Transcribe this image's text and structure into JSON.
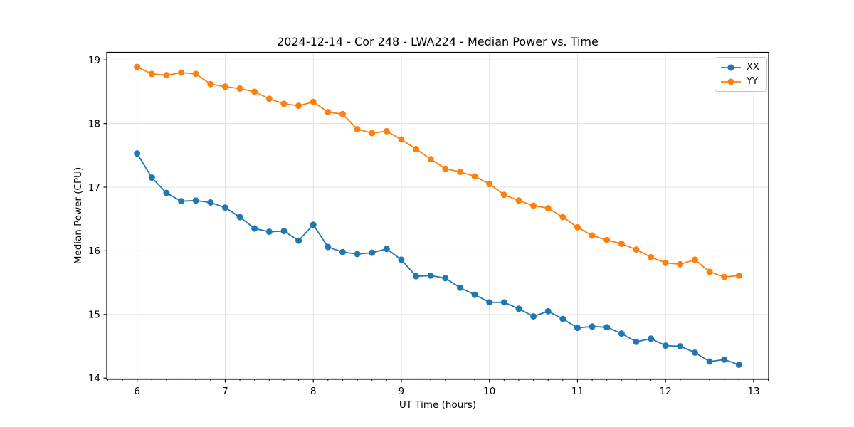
{
  "figure": {
    "background": "#ffffff"
  },
  "chart_data": {
    "type": "line",
    "title": "2024-12-14 - Cor 248 - LWA224 - Median Power vs. Time",
    "xlabel": "UT Time (hours)",
    "ylabel": "Median Power (CPU)",
    "xlim": [
      5.655,
      13.17
    ],
    "ylim": [
      13.98,
      19.12
    ],
    "xticks": [
      6,
      7,
      8,
      9,
      10,
      11,
      12,
      13
    ],
    "yticks": [
      14,
      15,
      16,
      17,
      18,
      19
    ],
    "minor_xtick_interval_hours": 0.1667,
    "grid": true,
    "grid_color": "#e0e0e0",
    "spine_color": "#000000",
    "legend_position": "upper right",
    "marker": "circle",
    "x": [
      6.0,
      6.1667,
      6.3333,
      6.5,
      6.6667,
      6.8333,
      7.0,
      7.1667,
      7.3333,
      7.5,
      7.6667,
      7.8333,
      8.0,
      8.1667,
      8.3333,
      8.5,
      8.6667,
      8.8333,
      9.0,
      9.1667,
      9.3333,
      9.5,
      9.6667,
      9.8333,
      10.0,
      10.1667,
      10.3333,
      10.5,
      10.6667,
      10.8333,
      11.0,
      11.1667,
      11.3333,
      11.5,
      11.6667,
      11.8333,
      12.0,
      12.1667,
      12.3333,
      12.5,
      12.6667,
      12.8333
    ],
    "series": [
      {
        "name": "XX",
        "color": "#1f77b4",
        "values": [
          17.53,
          17.15,
          16.91,
          16.78,
          16.79,
          16.76,
          16.68,
          16.53,
          16.35,
          16.3,
          16.31,
          16.16,
          16.41,
          16.06,
          15.98,
          15.95,
          15.97,
          16.03,
          15.86,
          15.6,
          15.61,
          15.57,
          15.42,
          15.31,
          15.19,
          15.19,
          15.09,
          14.97,
          15.05,
          14.93,
          14.79,
          14.81,
          14.8,
          14.7,
          14.57,
          14.62,
          14.51,
          14.5,
          14.4,
          14.26,
          14.29,
          14.21
        ]
      },
      {
        "name": "YY",
        "color": "#ff7f0e",
        "values": [
          18.89,
          18.78,
          18.76,
          18.8,
          18.78,
          18.62,
          18.58,
          18.55,
          18.5,
          18.39,
          18.31,
          18.28,
          18.34,
          18.18,
          18.15,
          17.91,
          17.85,
          17.88,
          17.75,
          17.6,
          17.44,
          17.29,
          17.24,
          17.17,
          17.05,
          16.88,
          16.79,
          16.71,
          16.67,
          16.53,
          16.37,
          16.24,
          16.17,
          16.11,
          16.02,
          15.9,
          15.81,
          15.79,
          15.86,
          15.67,
          15.59,
          15.61
        ]
      }
    ]
  }
}
